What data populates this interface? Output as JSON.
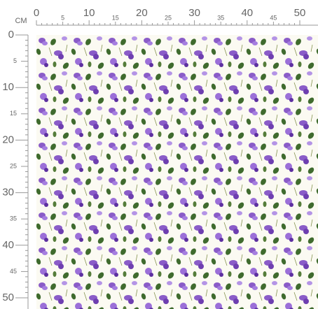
{
  "ruler": {
    "unit": "CM",
    "top_labels": [
      0,
      5,
      10,
      15,
      20,
      25,
      30,
      35,
      40,
      45,
      50
    ],
    "left_labels": [
      0,
      5,
      10,
      15,
      20,
      25,
      30,
      35,
      40,
      45,
      50
    ]
  }
}
